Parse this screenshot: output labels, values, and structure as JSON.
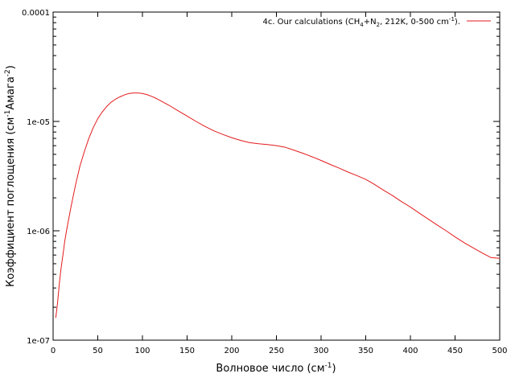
{
  "chart_data": {
    "type": "line",
    "title": "",
    "xlabel": {
      "text": "Волновое число (см",
      "sup": "-1",
      "tail": ")"
    },
    "ylabel": {
      "parts": [
        {
          "t": "Коэффициент поглощения (см",
          "sup": false
        },
        {
          "t": "-1",
          "sup": true
        },
        {
          "t": "Амага",
          "sup": false
        },
        {
          "t": "-2",
          "sup": true
        },
        {
          "t": ")",
          "sup": false
        }
      ]
    },
    "xlim": [
      0,
      500
    ],
    "ylim": [
      1e-07,
      0.0001
    ],
    "yscale": "log",
    "grid": false,
    "legend_position": "top-right",
    "x_ticks": [
      0,
      50,
      100,
      150,
      200,
      250,
      300,
      350,
      400,
      450,
      500
    ],
    "x_tick_labels": [
      "0",
      "50",
      "100",
      "150",
      "200",
      "250",
      "300",
      "350",
      "400",
      "450",
      "500"
    ],
    "y_ticks": [
      1e-07,
      1e-06,
      1e-05,
      0.0001
    ],
    "y_tick_labels": [
      "1e-07",
      "1e-06",
      "1e-05",
      "0.0001"
    ],
    "series": [
      {
        "name_parts": [
          {
            "t": "4c. Our  calculations (CH",
            "s": ""
          },
          {
            "t": "4",
            "s": "sub"
          },
          {
            "t": "+N",
            "s": ""
          },
          {
            "t": "2",
            "s": "sub"
          },
          {
            "t": ", 212K, 0-500 cm",
            "s": ""
          },
          {
            "t": "-1",
            "s": "sup"
          },
          {
            "t": ").",
            "s": ""
          }
        ],
        "color": "#e41a1c",
        "x": [
          3,
          5,
          7,
          9,
          11,
          13,
          15,
          18,
          20,
          25,
          30,
          35,
          40,
          45,
          50,
          55,
          60,
          65,
          70,
          75,
          80,
          85,
          90,
          95,
          100,
          105,
          110,
          115,
          120,
          130,
          140,
          150,
          160,
          170,
          180,
          190,
          200,
          210,
          220,
          230,
          240,
          250,
          260,
          270,
          280,
          290,
          300,
          310,
          320,
          330,
          340,
          350,
          360,
          370,
          380,
          390,
          400,
          410,
          420,
          430,
          440,
          450,
          460,
          470,
          480,
          490,
          500
        ],
        "y": [
          1.6e-07,
          2.2e-07,
          3.3e-07,
          4.6e-07,
          6e-07,
          8e-07,
          1e-06,
          1.35e-06,
          1.65e-06,
          2.6e-06,
          3.9e-06,
          5.3e-06,
          7e-06,
          8.8e-06,
          1.06e-05,
          1.22e-05,
          1.37e-05,
          1.5e-05,
          1.6e-05,
          1.68e-05,
          1.75e-05,
          1.8e-05,
          1.82e-05,
          1.82e-05,
          1.8e-05,
          1.76e-05,
          1.7e-05,
          1.63e-05,
          1.55e-05,
          1.4e-05,
          1.25e-05,
          1.12e-05,
          1e-05,
          9e-06,
          8.2e-06,
          7.6e-06,
          7.1e-06,
          6.7e-06,
          6.4e-06,
          6.25e-06,
          6.15e-06,
          6e-06,
          5.8e-06,
          5.45e-06,
          5.1e-06,
          4.75e-06,
          4.4e-06,
          4.05e-06,
          3.75e-06,
          3.45e-06,
          3.2e-06,
          2.95e-06,
          2.65e-06,
          2.35e-06,
          2.1e-06,
          1.85e-06,
          1.65e-06,
          1.45e-06,
          1.28e-06,
          1.13e-06,
          1e-06,
          8.8e-07,
          7.8e-07,
          7e-07,
          6.3e-07,
          5.7e-07,
          5.6e-07
        ]
      }
    ]
  }
}
